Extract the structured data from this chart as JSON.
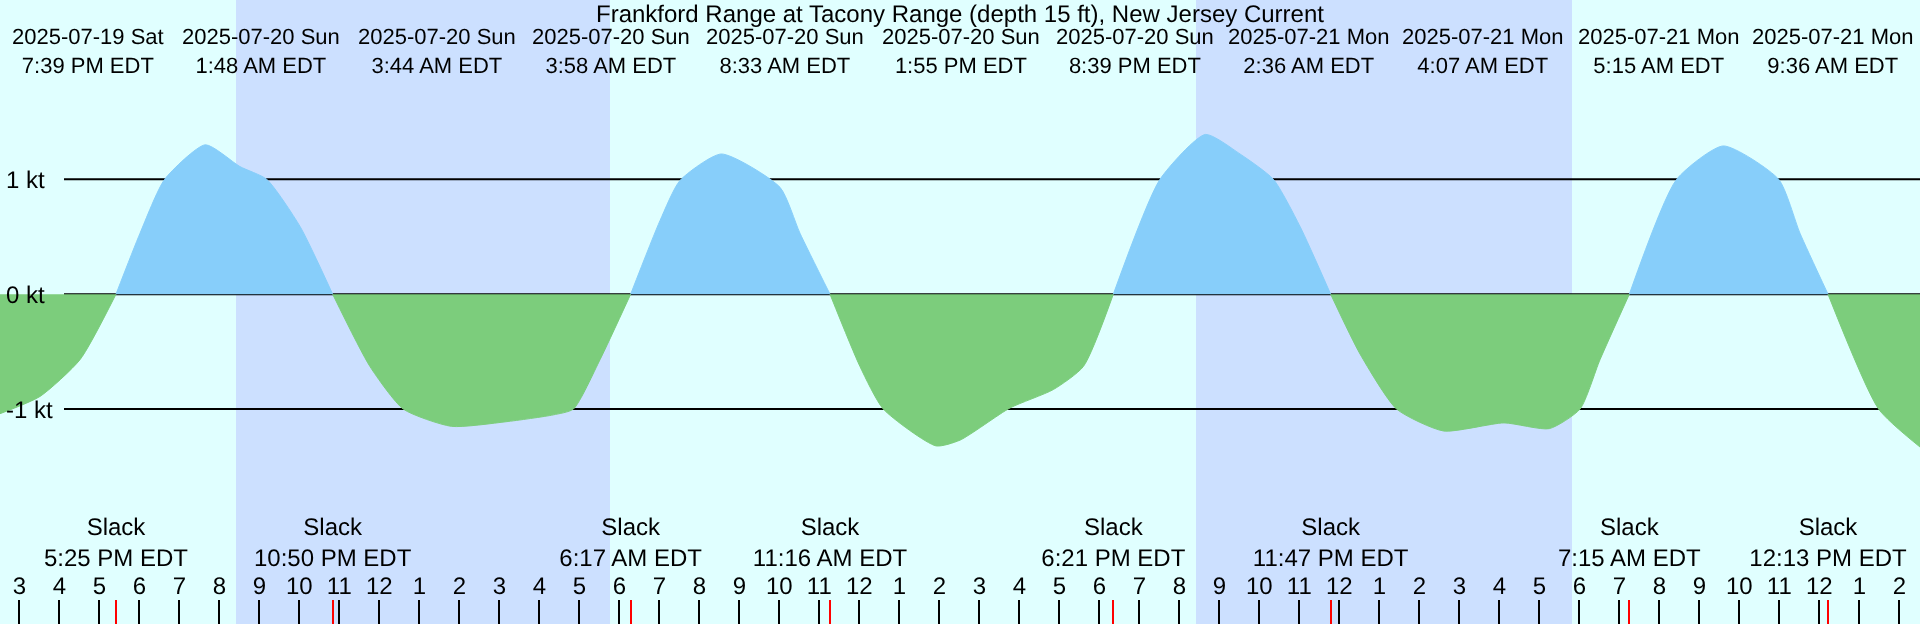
{
  "chart_data": {
    "type": "area",
    "title": "Frankford Range at Tacony Range (depth 15 ft), New Jersey Current",
    "series": [
      {
        "color": "#87cefa",
        "x": [
          "2025-07-19T17:25",
          "2025-07-19T18:01",
          "2025-07-19T18:38",
          "2025-07-19T19:39",
          "2025-07-19T20:31",
          "2025-07-19T21:11",
          "2025-07-19T22:01",
          "2025-07-19T22:50",
          null,
          "2025-07-20T06:17",
          "2025-07-20T07:01",
          "2025-07-20T07:31",
          "2025-07-20T08:33",
          "2025-07-20T10:01",
          "2025-07-20T10:31",
          "2025-07-20T11:16",
          null,
          "2025-07-20T18:21",
          "2025-07-20T19:31",
          "2025-07-20T20:39",
          "2025-07-20T21:31",
          "2025-07-20T22:21",
          "2025-07-20T23:01",
          "2025-07-20T23:47",
          null,
          "2025-07-21T07:15",
          "2025-07-21T08:26",
          "2025-07-21T09:36",
          "2025-07-21T10:59",
          "2025-07-21T11:31",
          "2025-07-21T12:13"
        ],
        "values": [
          0,
          0.53,
          1.0,
          1.3,
          1.11,
          1.0,
          0.59,
          0,
          null,
          0,
          0.64,
          0.99,
          1.22,
          0.93,
          0.53,
          0,
          null,
          0,
          1.0,
          1.39,
          1.22,
          1.0,
          0.59,
          0,
          null,
          0,
          1.0,
          1.29,
          1.0,
          0.53,
          0
        ]
      },
      {
        "color": "#7ccd7c",
        "x": [
          "2025-07-19T14:31",
          "2025-07-19T15:31",
          "2025-07-19T16:31",
          "2025-07-19T17:25",
          null,
          "2025-07-19T22:50",
          "2025-07-19T23:46",
          "2025-07-20T00:36",
          "2025-07-20T01:48",
          "2025-07-20T03:10",
          "2025-07-20T04:21",
          "2025-07-20T04:51",
          "2025-07-20T05:31",
          "2025-07-20T06:17",
          null,
          "2025-07-20T11:16",
          "2025-07-20T12:01",
          "2025-07-20T12:36",
          "2025-07-20T13:55",
          "2025-07-20T14:31",
          "2025-07-20T15:46",
          "2025-07-20T16:51",
          "2025-07-20T17:36",
          "2025-07-20T18:21",
          null,
          "2025-07-20T23:47",
          "2025-07-21T00:31",
          "2025-07-21T01:26",
          "2025-07-21T02:36",
          "2025-07-21T04:07",
          "2025-07-21T05:15",
          "2025-07-21T06:01",
          "2025-07-21T06:31",
          "2025-07-21T07:15",
          null,
          "2025-07-21T12:13",
          "2025-07-21T13:29",
          "2025-07-21T14:31"
        ],
        "values": [
          -1.04,
          -0.89,
          -0.57,
          0,
          null,
          0,
          -0.63,
          -1.0,
          -1.15,
          -1.11,
          -1.05,
          -1.0,
          -0.57,
          0,
          null,
          0,
          -0.63,
          -1.0,
          -1.32,
          -1.27,
          -0.99,
          -0.83,
          -0.63,
          0,
          null,
          0,
          -0.52,
          -1.0,
          -1.19,
          -1.12,
          -1.17,
          -1.0,
          -0.57,
          0,
          null,
          0,
          -1.0,
          -1.33
        ]
      }
    ],
    "xlim": [
      "2025-07-19T14:31",
      "2025-07-21T14:31"
    ],
    "xticks": [
      {
        "value": "2025-07-19T15:00",
        "label": "3"
      },
      {
        "value": "2025-07-19T16:00",
        "label": "4"
      },
      {
        "value": "2025-07-19T17:00",
        "label": "5"
      },
      {
        "value": "2025-07-19T18:00",
        "label": "6"
      },
      {
        "value": "2025-07-19T19:00",
        "label": "7"
      },
      {
        "value": "2025-07-19T20:00",
        "label": "8"
      },
      {
        "value": "2025-07-19T21:00",
        "label": "9"
      },
      {
        "value": "2025-07-19T22:00",
        "label": "10"
      },
      {
        "value": "2025-07-19T23:00",
        "label": "11"
      },
      {
        "value": "2025-07-20T00:00",
        "label": "12"
      },
      {
        "value": "2025-07-20T01:00",
        "label": "1"
      },
      {
        "value": "2025-07-20T02:00",
        "label": "2"
      },
      {
        "value": "2025-07-20T03:00",
        "label": "3"
      },
      {
        "value": "2025-07-20T04:00",
        "label": "4"
      },
      {
        "value": "2025-07-20T05:00",
        "label": "5"
      },
      {
        "value": "2025-07-20T06:00",
        "label": "6"
      },
      {
        "value": "2025-07-20T07:00",
        "label": "7"
      },
      {
        "value": "2025-07-20T08:00",
        "label": "8"
      },
      {
        "value": "2025-07-20T09:00",
        "label": "9"
      },
      {
        "value": "2025-07-20T10:00",
        "label": "10"
      },
      {
        "value": "2025-07-20T11:00",
        "label": "11"
      },
      {
        "value": "2025-07-20T12:00",
        "label": "12"
      },
      {
        "value": "2025-07-20T13:00",
        "label": "1"
      },
      {
        "value": "2025-07-20T14:00",
        "label": "2"
      },
      {
        "value": "2025-07-20T15:00",
        "label": "3"
      },
      {
        "value": "2025-07-20T16:00",
        "label": "4"
      },
      {
        "value": "2025-07-20T17:00",
        "label": "5"
      },
      {
        "value": "2025-07-20T18:00",
        "label": "6"
      },
      {
        "value": "2025-07-20T19:00",
        "label": "7"
      },
      {
        "value": "2025-07-20T20:00",
        "label": "8"
      },
      {
        "value": "2025-07-20T21:00",
        "label": "9"
      },
      {
        "value": "2025-07-20T22:00",
        "label": "10"
      },
      {
        "value": "2025-07-20T23:00",
        "label": "11"
      },
      {
        "value": "2025-07-21T00:00",
        "label": "12"
      },
      {
        "value": "2025-07-21T01:00",
        "label": "1"
      },
      {
        "value": "2025-07-21T02:00",
        "label": "2"
      },
      {
        "value": "2025-07-21T03:00",
        "label": "3"
      },
      {
        "value": "2025-07-21T04:00",
        "label": "4"
      },
      {
        "value": "2025-07-21T05:00",
        "label": "5"
      },
      {
        "value": "2025-07-21T06:00",
        "label": "6"
      },
      {
        "value": "2025-07-21T07:00",
        "label": "7"
      },
      {
        "value": "2025-07-21T08:00",
        "label": "8"
      },
      {
        "value": "2025-07-21T09:00",
        "label": "9"
      },
      {
        "value": "2025-07-21T10:00",
        "label": "10"
      },
      {
        "value": "2025-07-21T11:00",
        "label": "11"
      },
      {
        "value": "2025-07-21T12:00",
        "label": "12"
      },
      {
        "value": "2025-07-21T13:00",
        "label": "1"
      },
      {
        "value": "2025-07-21T14:00",
        "label": "2"
      }
    ],
    "ylim": [
      -2.87,
      2.56
    ],
    "yticks": [
      {
        "value": 1,
        "label": "1 kt"
      },
      {
        "value": 0,
        "label": "0 kt"
      },
      {
        "value": -1,
        "label": "-1 kt"
      }
    ],
    "grid": "y",
    "bands": [
      {
        "axis": "x",
        "from": "2025-07-19T20:25",
        "to": "2025-07-20T05:46",
        "color": "#cce0ff"
      },
      {
        "axis": "x",
        "from": "2025-07-20T20:25",
        "to": "2025-07-21T05:49",
        "color": "#cce0ff"
      }
    ],
    "annotations": [
      "2025-07-19 Sat\n7:39 PM EDT",
      "2025-07-20 Sun\n1:48 AM EDT",
      "2025-07-20 Sun\n3:44 AM EDT",
      "2025-07-20 Sun\n3:58 AM EDT",
      "2025-07-20 Sun\n8:33 AM EDT",
      "2025-07-20 Sun\n1:55 PM EDT",
      "2025-07-20 Sun\n8:39 PM EDT",
      "2025-07-21 Mon\n2:36 AM EDT",
      "2025-07-21 Mon\n4:07 AM EDT",
      "2025-07-21 Mon\n5:15 AM EDT",
      "2025-07-21 Mon\n9:36 AM EDT"
    ],
    "x2lim": [
      "2025-07-19T14:31",
      "2025-07-21T14:31"
    ],
    "x2ticks": [
      {
        "value": "2025-07-19T17:25",
        "label": "Slack\n5:25 PM EDT"
      },
      {
        "value": "2025-07-19T22:50",
        "label": "Slack\n10:50 PM EDT"
      },
      {
        "value": "2025-07-20T06:17",
        "label": "Slack\n6:17 AM EDT"
      },
      {
        "value": "2025-07-20T11:16",
        "label": "Slack\n11:16 AM EDT"
      },
      {
        "value": "2025-07-20T18:21",
        "label": "Slack\n6:21 PM EDT"
      },
      {
        "value": "2025-07-20T23:47",
        "label": "Slack\n11:47 PM EDT"
      },
      {
        "value": "2025-07-21T07:15",
        "label": "Slack\n7:15 AM EDT"
      },
      {
        "value": "2025-07-21T12:13",
        "label": "Slack\n12:13 PM EDT"
      }
    ]
  }
}
